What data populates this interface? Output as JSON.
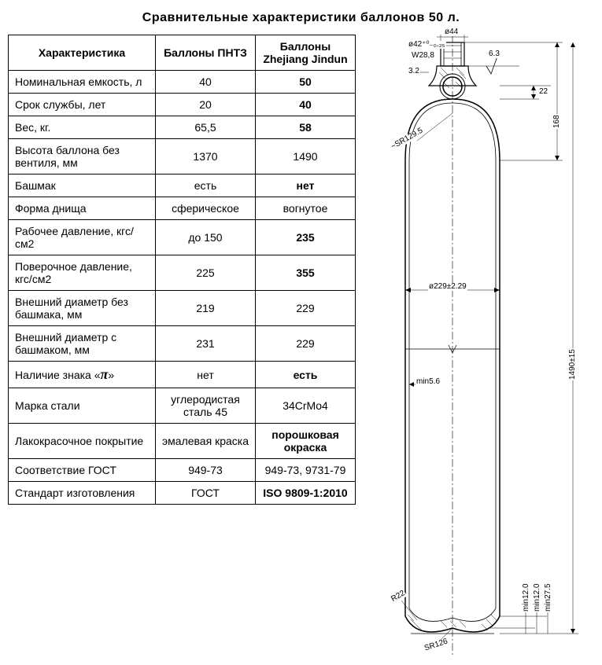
{
  "title": "Сравнительные  характеристики  баллонов  50 л.",
  "table": {
    "headers": [
      "Характеристика",
      "Баллоны ПНТЗ",
      "Баллоны Zhejiang Jindun"
    ],
    "rows": [
      {
        "label": "Номинальная емкость, л",
        "a": "40",
        "b": "50",
        "bold_b": true
      },
      {
        "label": "Срок службы, лет",
        "a": "20",
        "b": "40",
        "bold_b": true
      },
      {
        "label": "Вес, кг.",
        "a": "65,5",
        "b": "58",
        "bold_b": true
      },
      {
        "label": "Высота баллона без вентиля, мм",
        "a": "1370",
        "b": "1490",
        "bold_b": false
      },
      {
        "label": "Башмак",
        "a": "есть",
        "b": "нет",
        "bold_b": true
      },
      {
        "label": "Форма днища",
        "a": "сферическое",
        "b": "вогнутое",
        "bold_b": false
      },
      {
        "label": "Рабочее давление, кгс/см2",
        "a": "до 150",
        "b": "235",
        "bold_b": true
      },
      {
        "label": "Поверочное давление, кгс/см2",
        "a": "225",
        "b": "355",
        "bold_b": true
      },
      {
        "label": "Внешний диаметр без башмака, мм",
        "a": "219",
        "b": "229",
        "bold_b": false
      },
      {
        "label": "Внешний диаметр с башмаком, мм",
        "a": "231",
        "b": "229",
        "bold_b": false
      },
      {
        "label_html": "Наличие знака «<span class='pi'>π</span>»",
        "a": "нет",
        "b": "есть",
        "bold_b": true
      },
      {
        "label": "Марка стали",
        "a": "углеродистая сталь 45",
        "b": "34CrMo4",
        "bold_b": false
      },
      {
        "label": "Лакокрасочное покрытие",
        "a": "эмалевая краска",
        "b": "порошковая окраска",
        "bold_b": true
      },
      {
        "label": "Соответствие ГОСТ",
        "a": "949-73",
        "b": "949-73, 9731-79",
        "bold_b": false
      },
      {
        "label": "Стандарт изготовления",
        "a": "ГОСТ",
        "b": "ISO 9809-1:2010",
        "bold_b": true
      }
    ]
  },
  "diagram": {
    "stroke": "#000000",
    "dash": "4 3",
    "neck_outer_diameter": "ø44",
    "neck_inner_diameter": "ø42⁺⁰₋₀.₂₅",
    "thread": "W28,8",
    "wall_top": "3.2",
    "surface_finish": "6.3",
    "neck_to_shoulder": "22",
    "top_height": "168",
    "shoulder_radius": "~SR129.5",
    "body_diameter": "ø229±2.29",
    "wall_min": "min5.6",
    "total_height": "1490±15",
    "bottom_inner_radius": "R22",
    "bottom_outer_radius": "SR126",
    "bottom_min1": "min12.0",
    "bottom_min2": "min12.0",
    "bottom_min3": "min27.5"
  }
}
